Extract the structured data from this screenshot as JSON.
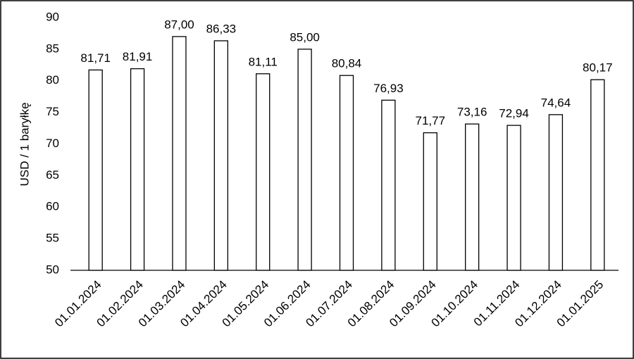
{
  "chart_data": {
    "type": "bar",
    "y_label": "USD / 1 baryłkę",
    "categories": [
      "01.01.2024",
      "01.02.2024",
      "01.03.2024",
      "01.04.2024",
      "01.05.2024",
      "01.06.2024",
      "01.07.2024",
      "01.08.2024",
      "01.09.2024",
      "01.10.2024",
      "01.11.2024",
      "01.12.2024",
      "01.01.2025"
    ],
    "values": [
      81.71,
      81.91,
      87.0,
      86.33,
      81.11,
      85.0,
      80.84,
      76.93,
      71.77,
      73.16,
      72.94,
      74.64,
      80.17
    ],
    "value_labels": [
      "81,71",
      "81,91",
      "87,00",
      "86,33",
      "81,11",
      "85,00",
      "80,84",
      "76,93",
      "71,77",
      "73,16",
      "72,94",
      "74,64",
      "80,17"
    ],
    "color": "#ffffff",
    "ylim": [
      50,
      90
    ],
    "yticks": [
      50,
      55,
      60,
      65,
      70,
      75,
      80,
      85,
      90
    ],
    "grid": false
  }
}
